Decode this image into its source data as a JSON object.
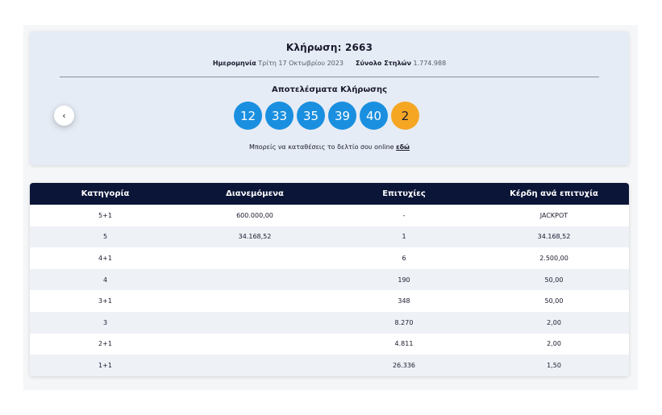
{
  "draw": {
    "title": "Κλήρωση: 2663",
    "date_label": "Ημερομηνία",
    "date_value": "Τρίτη 17 Οκτωβρίου 2023",
    "columns_label": "Σύνολο Στηλών",
    "columns_value": "1.774.988",
    "results_title": "Αποτελέσματα Κλήρωσης",
    "numbers": [
      "12",
      "33",
      "35",
      "39",
      "40"
    ],
    "bonus": "2",
    "online_text": "Μπορείς να καταθέσεις το δελτίο σου online",
    "online_link": "εδώ",
    "prev_icon": "chevron-left-icon",
    "prev_glyph": "‹"
  },
  "colors": {
    "ball": "#1a8fe0",
    "bonus_ball": "#f5a623",
    "table_header": "#0b1537",
    "card_bg": "#e6ecf5"
  },
  "table": {
    "headers": [
      "Κατηγορία",
      "Διανεμόμενα",
      "Επιτυχίες",
      "Κέρδη ανά επιτυχία"
    ],
    "rows": [
      [
        "5+1",
        "600.000,00",
        "-",
        "JACKPOT"
      ],
      [
        "5",
        "34.168,52",
        "1",
        "34.168,52"
      ],
      [
        "4+1",
        "",
        "6",
        "2.500,00"
      ],
      [
        "4",
        "",
        "190",
        "50,00"
      ],
      [
        "3+1",
        "",
        "348",
        "50,00"
      ],
      [
        "3",
        "",
        "8.270",
        "2,00"
      ],
      [
        "2+1",
        "",
        "4.811",
        "2,00"
      ],
      [
        "1+1",
        "",
        "26.336",
        "1,50"
      ]
    ]
  }
}
